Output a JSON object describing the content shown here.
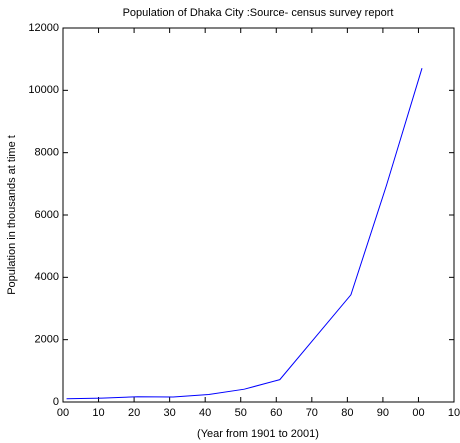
{
  "chart_data": {
    "type": "line",
    "title": "Population of Dhaka City :Source- census survey report",
    "x_label": "(Year from 1901 to 2001)",
    "y_label": "Population in thousands at time t",
    "x": [
      1,
      11,
      21,
      31,
      41,
      51,
      61,
      71,
      81,
      91,
      101
    ],
    "series": [
      {
        "name": "Population",
        "color": "#0000ff",
        "values": [
          104,
          125,
          169,
          161,
          239,
          411,
          718,
          2080,
          3440,
          6950,
          10710
        ]
      }
    ],
    "xlim": [
      0,
      110
    ],
    "xticks": [
      {
        "value": 0,
        "label": "00"
      },
      10,
      20,
      30,
      40,
      50,
      60,
      70,
      80,
      90,
      {
        "value": 100,
        "label": "00"
      },
      {
        "value": 110,
        "label": "10"
      }
    ],
    "ylim": [
      0,
      12000
    ],
    "yticks": [
      0,
      2000,
      4000,
      6000,
      8000,
      10000,
      12000
    ]
  }
}
